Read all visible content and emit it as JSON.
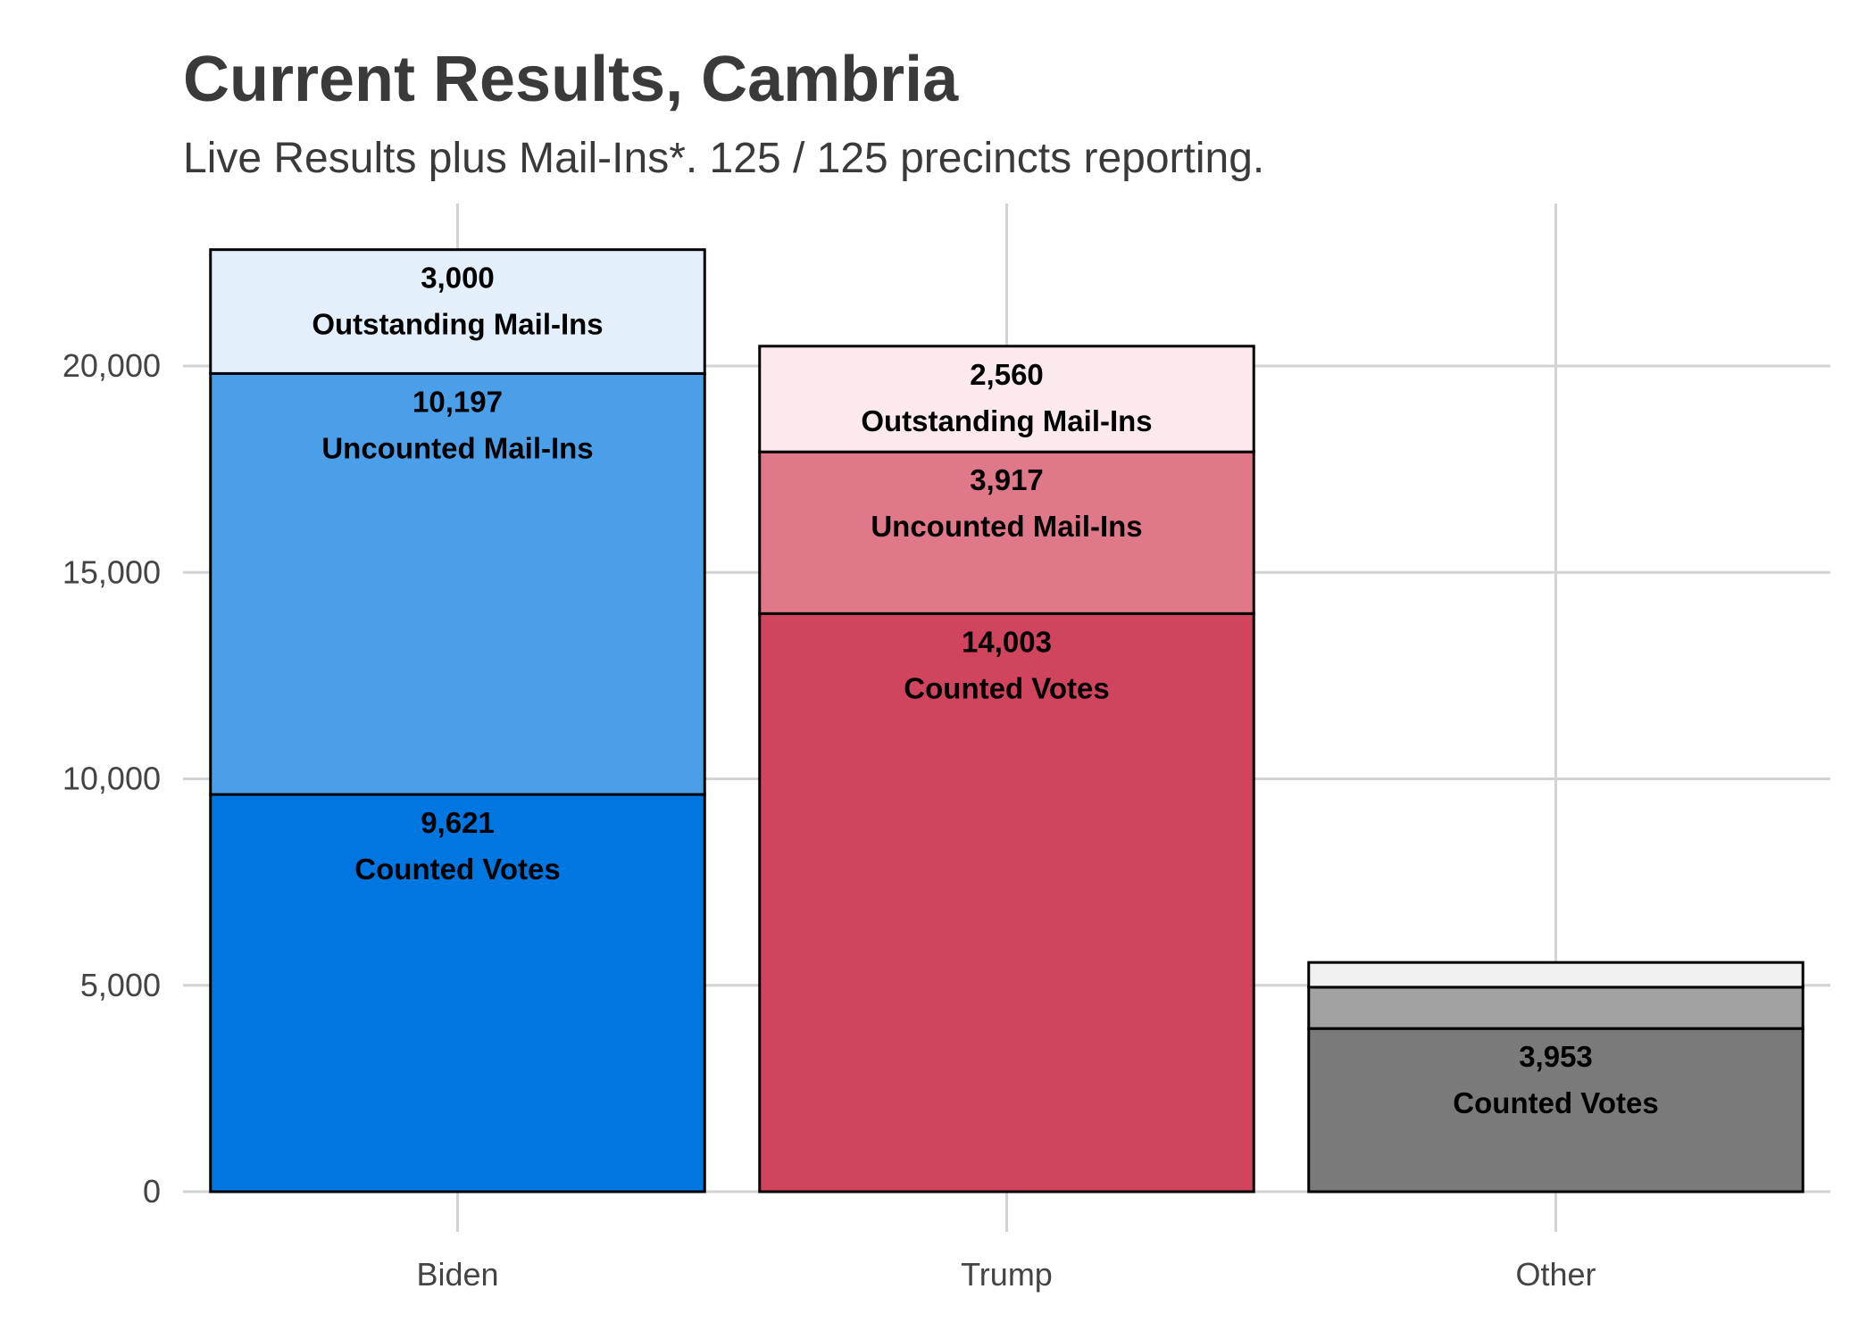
{
  "chart_data": {
    "type": "bar",
    "stacked": true,
    "title": "Current Results, Cambria",
    "subtitle": "Live Results plus Mail-Ins*. 125 / 125 precincts reporting.",
    "xlabel": "",
    "ylabel": "",
    "categories": [
      "Biden",
      "Trump",
      "Other"
    ],
    "ylim": [
      0,
      24000
    ],
    "yticks": [
      0,
      5000,
      10000,
      15000,
      20000
    ],
    "ytick_labels": [
      "0",
      "5,000",
      "10,000",
      "15,000",
      "20,000"
    ],
    "grid": true,
    "legend": "none",
    "series": [
      {
        "name": "Counted Votes",
        "values": [
          9621,
          14003,
          3953
        ],
        "colors": [
          "#0077e0",
          "#d1445e",
          "#7a7a7a"
        ]
      },
      {
        "name": "Uncounted Mail-Ins",
        "values": [
          10197,
          3917,
          1000
        ],
        "colors": [
          "#4b9fe8",
          "#df7889",
          "#a2a2a2"
        ]
      },
      {
        "name": "Outstanding Mail-Ins",
        "values": [
          3000,
          2560,
          600
        ],
        "colors": [
          "#e3f0fc",
          "#fbe9ed",
          "#f0f0f0"
        ]
      }
    ],
    "labels": [
      [
        "9,621",
        "14,003",
        "3,953"
      ],
      [
        "10,197",
        "3,917",
        ""
      ],
      [
        "3,000",
        "2,560",
        ""
      ]
    ]
  }
}
